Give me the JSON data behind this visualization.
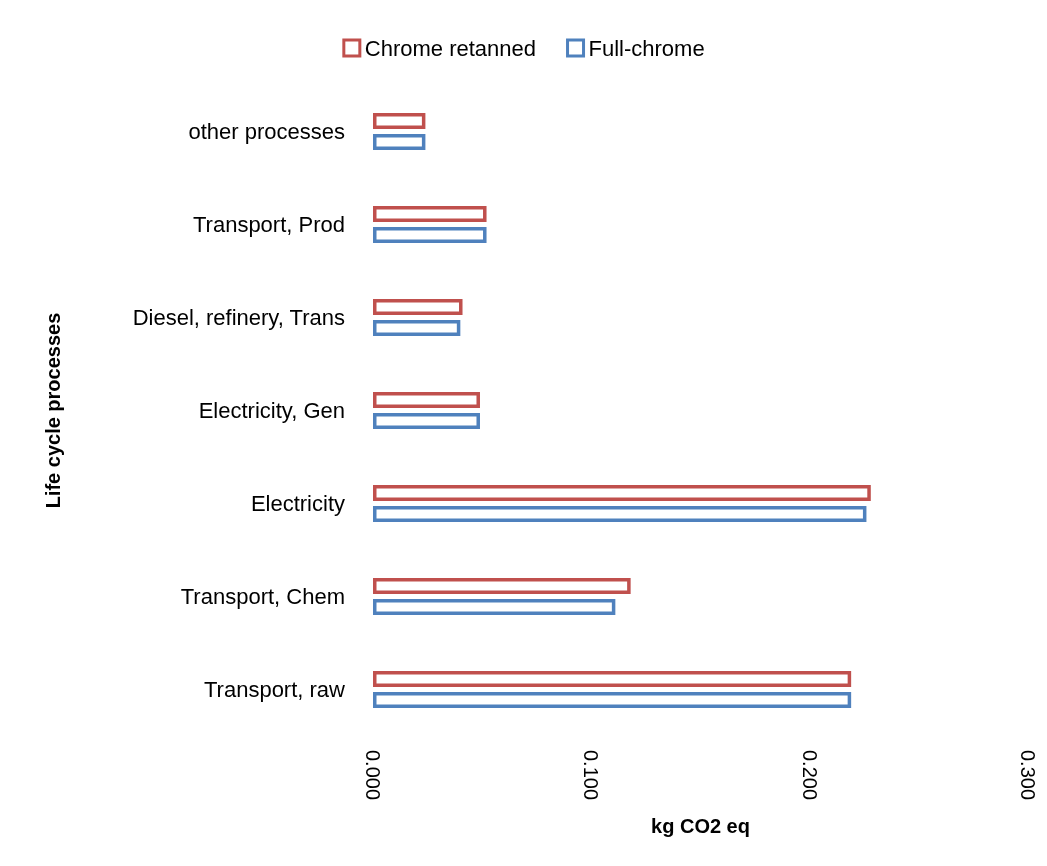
{
  "chart_data": {
    "type": "bar",
    "orientation": "horizontal",
    "categories": [
      "other processes",
      "Transport, Prod",
      "Diesel, refinery, Trans",
      "Electricity, Gen",
      "Electricity",
      "Transport, Chem",
      "Transport, raw"
    ],
    "series": [
      {
        "name": "Chrome retanned",
        "color": "#c0504d",
        "values": [
          0.024,
          0.052,
          0.041,
          0.049,
          0.228,
          0.118,
          0.219
        ]
      },
      {
        "name": "Full-chrome",
        "color": "#4f81bd",
        "values": [
          0.024,
          0.052,
          0.04,
          0.049,
          0.226,
          0.111,
          0.219
        ]
      }
    ],
    "xlim": [
      0,
      0.3
    ],
    "xticks": [
      {
        "value": 0,
        "label": "0.000"
      },
      {
        "value": 0.1,
        "label": "0.100"
      },
      {
        "value": 0.2,
        "label": "0.200"
      },
      {
        "value": 0.3,
        "label": "0.300"
      }
    ],
    "xlabel": "kg CO2 eq",
    "ylabel": "Life cycle processes",
    "legend": "top",
    "grid": false
  }
}
